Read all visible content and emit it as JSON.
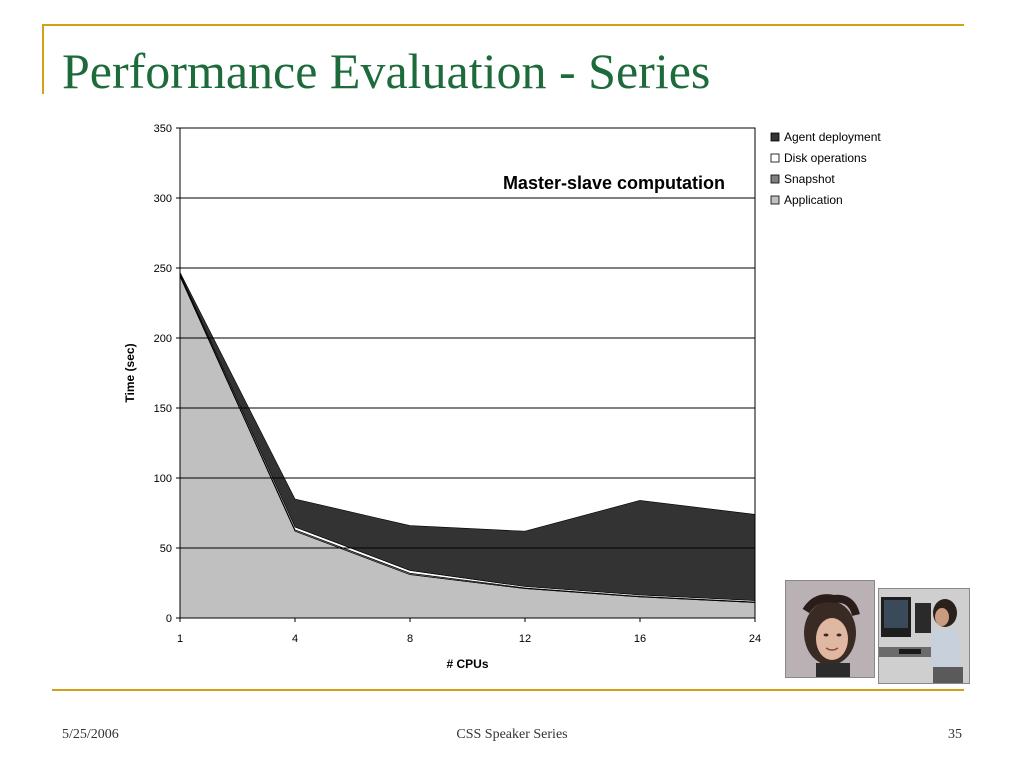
{
  "slide": {
    "title": "Performance Evaluation - Series",
    "footer_date": "5/25/2006",
    "footer_center": "CSS Speaker Series",
    "page_number": "35",
    "accent_color": "#d4a017",
    "title_color": "#1d6b3a"
  },
  "chart_data": {
    "type": "area",
    "stacked": true,
    "title": "Master-slave computation",
    "xlabel": "# CPUs",
    "ylabel": "Time (sec)",
    "categories": [
      "1",
      "4",
      "8",
      "12",
      "16",
      "24"
    ],
    "ylim": [
      0,
      350
    ],
    "yticks": [
      0,
      50,
      100,
      150,
      200,
      250,
      300,
      350
    ],
    "grid": true,
    "legend_position": "right",
    "series": [
      {
        "name": "Application",
        "values": [
          244,
          62,
          31,
          21,
          15,
          11
        ],
        "color": "#c0c0c0"
      },
      {
        "name": "Snapshot",
        "values": [
          1,
          1,
          1,
          0.5,
          0.5,
          0.5
        ],
        "color": "#808080"
      },
      {
        "name": "Disk operations",
        "values": [
          1,
          2,
          2,
          1,
          1,
          1
        ],
        "color": "#ffffff"
      },
      {
        "name": "Agent deployment",
        "values": [
          1,
          20,
          32,
          39.5,
          67.5,
          61.5
        ],
        "color": "#333333"
      }
    ],
    "legend_order": [
      "Agent deployment",
      "Disk operations",
      "Snapshot",
      "Application"
    ]
  },
  "photos": [
    {
      "name": "woman-portrait-photo"
    },
    {
      "name": "student-at-computer-photo"
    }
  ]
}
